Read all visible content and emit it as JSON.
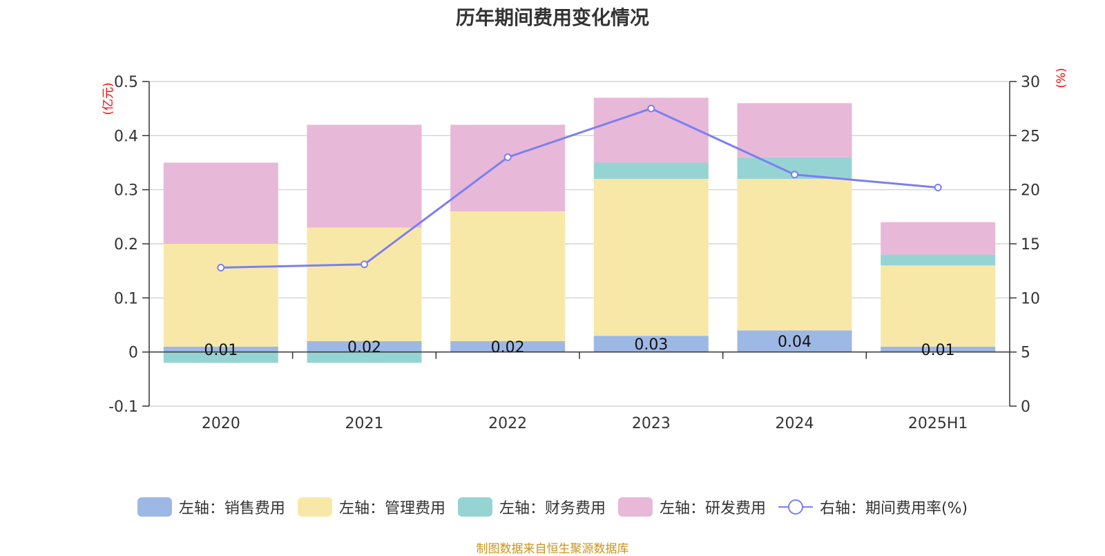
{
  "title": "历年期间费用变化情况",
  "source": "制图数据来自恒生聚源数据库",
  "colors": {
    "sales": "#9db8e4",
    "admin": "#f8e8a8",
    "finance": "#96d4d4",
    "rd": "#e8b8d8",
    "line": "#7b7ff0",
    "axis_unit": "#ff0000"
  },
  "chart_data": {
    "type": "bar",
    "stacked": true,
    "categories": [
      "2020",
      "2021",
      "2022",
      "2023",
      "2024",
      "2025H1"
    ],
    "left_axis": {
      "unit": "(亿元)",
      "ylim": [
        -0.1,
        0.5
      ],
      "ticks": [
        "-0.1",
        "0",
        "0.1",
        "0.2",
        "0.3",
        "0.4",
        "0.5"
      ]
    },
    "right_axis": {
      "unit": "(%)",
      "ylim": [
        0,
        30
      ],
      "ticks": [
        "0",
        "5",
        "10",
        "15",
        "20",
        "25",
        "30"
      ]
    },
    "series": [
      {
        "key": "sales",
        "name": "左轴：销售费用",
        "type": "bar",
        "values": [
          0.01,
          0.02,
          0.02,
          0.03,
          0.04,
          0.01
        ],
        "labels": [
          "0.01",
          "0.02",
          "0.02",
          "0.03",
          "0.04",
          "0.01"
        ]
      },
      {
        "key": "admin",
        "name": "左轴：管理费用",
        "type": "bar",
        "values": [
          0.19,
          0.21,
          0.24,
          0.29,
          0.28,
          0.15
        ]
      },
      {
        "key": "finance",
        "name": "左轴：财务费用",
        "type": "bar",
        "values": [
          -0.02,
          -0.02,
          0.0,
          0.03,
          0.04,
          0.02
        ]
      },
      {
        "key": "rd",
        "name": "左轴：研发费用",
        "type": "bar",
        "values": [
          0.15,
          0.19,
          0.16,
          0.12,
          0.1,
          0.06
        ]
      },
      {
        "key": "line",
        "name": "右轴：期间费用率(%)",
        "type": "line",
        "axis": "right",
        "values": [
          12.8,
          13.1,
          23.0,
          27.5,
          21.4,
          20.2
        ]
      }
    ],
    "grid": true,
    "legend_position": "bottom"
  }
}
